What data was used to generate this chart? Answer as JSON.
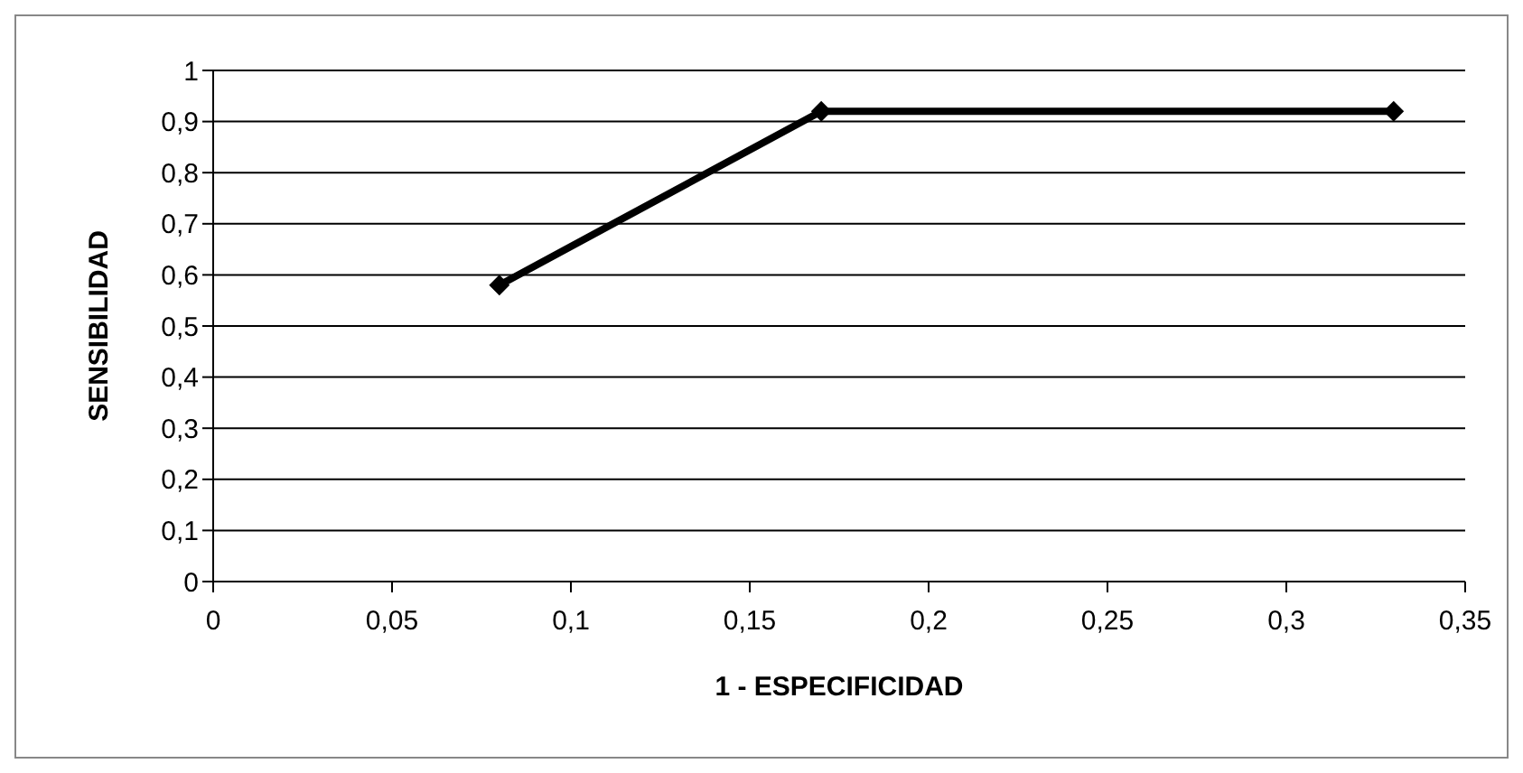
{
  "chart_data": {
    "type": "line",
    "xlabel": "1 - ESPECIFICIDAD",
    "ylabel": "SENSIBILIDAD",
    "x": [
      0.08,
      0.17,
      0.33
    ],
    "series": [
      {
        "color": "#000000",
        "values": [
          0.58,
          0.92,
          0.92
        ]
      }
    ],
    "xlim": [
      0,
      0.35
    ],
    "xticks": [
      0,
      {
        "value": 0.05,
        "label": "0,05"
      },
      {
        "value": 0.1,
        "label": "0,1"
      },
      {
        "value": 0.15,
        "label": "0,15"
      },
      {
        "value": 0.2,
        "label": "0,2"
      },
      {
        "value": 0.25,
        "label": "0,25"
      },
      {
        "value": 0.3,
        "label": "0,3"
      },
      {
        "value": 0.35,
        "label": "0,35"
      }
    ],
    "ylim": [
      0,
      1
    ],
    "yticks": [
      0,
      {
        "value": 0.1,
        "label": "0,1"
      },
      {
        "value": 0.2,
        "label": "0,2"
      },
      {
        "value": 0.3,
        "label": "0,3"
      },
      {
        "value": 0.4,
        "label": "0,4"
      },
      {
        "value": 0.5,
        "label": "0,5"
      },
      {
        "value": 0.6,
        "label": "0,6"
      },
      {
        "value": 0.7,
        "label": "0,7"
      },
      {
        "value": 0.8,
        "label": "0,8"
      },
      {
        "value": 0.9,
        "label": "0,9"
      },
      1
    ],
    "grid": "y",
    "marker": "diamond",
    "line_style": "solid",
    "legend": false
  }
}
